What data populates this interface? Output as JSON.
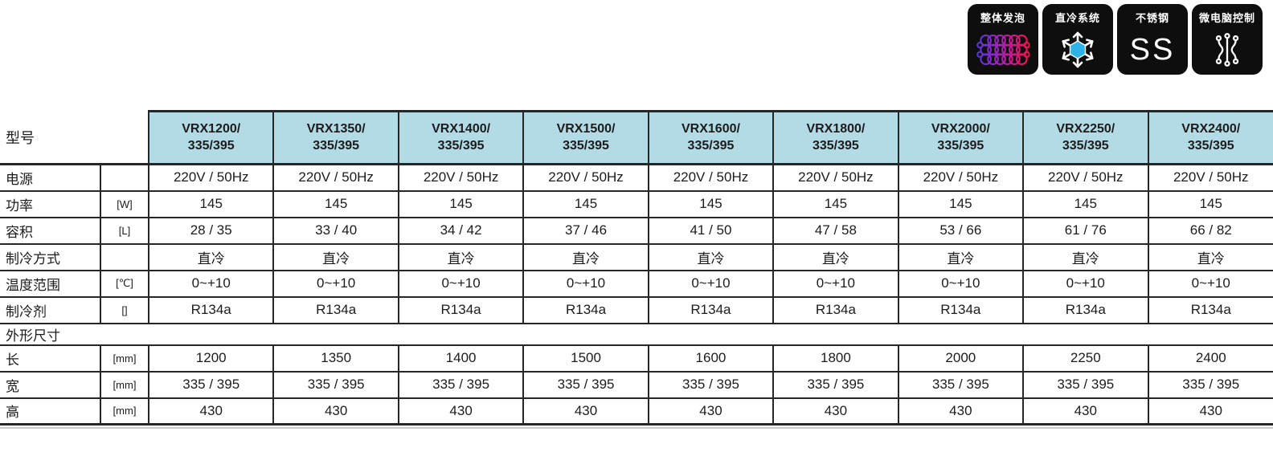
{
  "colors": {
    "header_bg": "#b3dbe5",
    "line": "#262626",
    "text": "#1c1c1c",
    "badge_bg": "#0e0e0e",
    "snowflake_blue": "#2fb2e6",
    "foam_gradient": [
      "#5b35d6",
      "#a324b4",
      "#f01355"
    ],
    "icon_white": "#ffffff"
  },
  "badges": [
    {
      "label": "整体发泡",
      "icon": "foam-icon"
    },
    {
      "label": "直冷系统",
      "icon": "snowflake-icon"
    },
    {
      "label": "不锈钢",
      "icon": "ss-text",
      "text": "SS"
    },
    {
      "label": "微电脑控制",
      "icon": "circuit-icon"
    }
  ],
  "table": {
    "corner_label": "型号",
    "models": [
      {
        "name": "VRX1200/",
        "size": "335/395"
      },
      {
        "name": "VRX1350/",
        "size": "335/395"
      },
      {
        "name": "VRX1400/",
        "size": "335/395"
      },
      {
        "name": "VRX1500/",
        "size": "335/395"
      },
      {
        "name": "VRX1600/",
        "size": "335/395"
      },
      {
        "name": "VRX1800/",
        "size": "335/395"
      },
      {
        "name": "VRX2000/",
        "size": "335/395"
      },
      {
        "name": "VRX2250/",
        "size": "335/395"
      },
      {
        "name": "VRX2400/",
        "size": "335/395"
      }
    ],
    "rows": [
      {
        "label": "电源",
        "unit": "",
        "values": [
          "220V / 50Hz",
          "220V / 50Hz",
          "220V / 50Hz",
          "220V / 50Hz",
          "220V / 50Hz",
          "220V / 50Hz",
          "220V / 50Hz",
          "220V / 50Hz",
          "220V / 50Hz"
        ]
      },
      {
        "label": "功率",
        "unit": "[W]",
        "values": [
          "145",
          "145",
          "145",
          "145",
          "145",
          "145",
          "145",
          "145",
          "145"
        ]
      },
      {
        "label": "容积",
        "unit": "[L]",
        "values": [
          "28 / 35",
          "33 / 40",
          "34 / 42",
          "37 / 46",
          "41 / 50",
          "47 / 58",
          "53 / 66",
          "61 / 76",
          "66 / 82"
        ]
      },
      {
        "label": "制冷方式",
        "unit": "",
        "values": [
          "直冷",
          "直冷",
          "直冷",
          "直冷",
          "直冷",
          "直冷",
          "直冷",
          "直冷",
          "直冷"
        ]
      },
      {
        "label": "温度范围",
        "unit": "[℃]",
        "values": [
          "0~+10",
          "0~+10",
          "0~+10",
          "0~+10",
          "0~+10",
          "0~+10",
          "0~+10",
          "0~+10",
          "0~+10"
        ]
      },
      {
        "label": "制冷剂",
        "unit": "[]",
        "values": [
          "R134a",
          "R134a",
          "R134a",
          "R134a",
          "R134a",
          "R134a",
          "R134a",
          "R134a",
          "R134a"
        ]
      },
      {
        "label": "外形尺寸",
        "section": true
      },
      {
        "label": "长",
        "unit": "[mm]",
        "values": [
          "1200",
          "1350",
          "1400",
          "1500",
          "1600",
          "1800",
          "2000",
          "2250",
          "2400"
        ]
      },
      {
        "label": "宽",
        "unit": "[mm]",
        "values": [
          "335 / 395",
          "335 / 395",
          "335 / 395",
          "335 / 395",
          "335 / 395",
          "335 / 395",
          "335 / 395",
          "335 / 395",
          "335 / 395"
        ]
      },
      {
        "label": "高",
        "unit": "[mm]",
        "values": [
          "430",
          "430",
          "430",
          "430",
          "430",
          "430",
          "430",
          "430",
          "430"
        ]
      }
    ]
  }
}
